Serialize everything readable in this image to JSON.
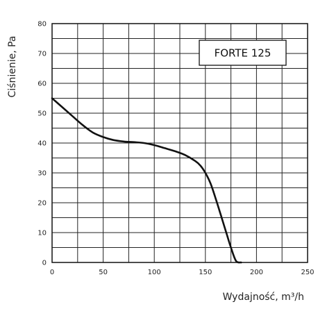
{
  "chart_data": {
    "type": "line",
    "title": "",
    "xlabel": "Wydajność, m³/h",
    "ylabel": "Ciśnienie, Pa",
    "xlim": [
      0,
      250
    ],
    "ylim": [
      0,
      80
    ],
    "x_ticks": [
      0,
      50,
      100,
      150,
      200,
      250
    ],
    "y_ticks": [
      0,
      10,
      20,
      30,
      40,
      50,
      60,
      70,
      80
    ],
    "grid": true,
    "legend_position": "top-right",
    "series": [
      {
        "name": "FORTE 125",
        "color": "#111111",
        "x": [
          0,
          10,
          20,
          30,
          40,
          50,
          60,
          70,
          80,
          90,
          100,
          110,
          120,
          130,
          140,
          145,
          150,
          155,
          160,
          165,
          170,
          175,
          180,
          185
        ],
        "y": [
          55,
          52,
          49,
          46,
          43.5,
          42,
          41,
          40.5,
          40.3,
          40,
          39.3,
          38.3,
          37.3,
          36,
          34,
          32.5,
          30,
          26.5,
          21.5,
          16,
          10.5,
          5,
          0.5,
          0
        ]
      }
    ]
  }
}
